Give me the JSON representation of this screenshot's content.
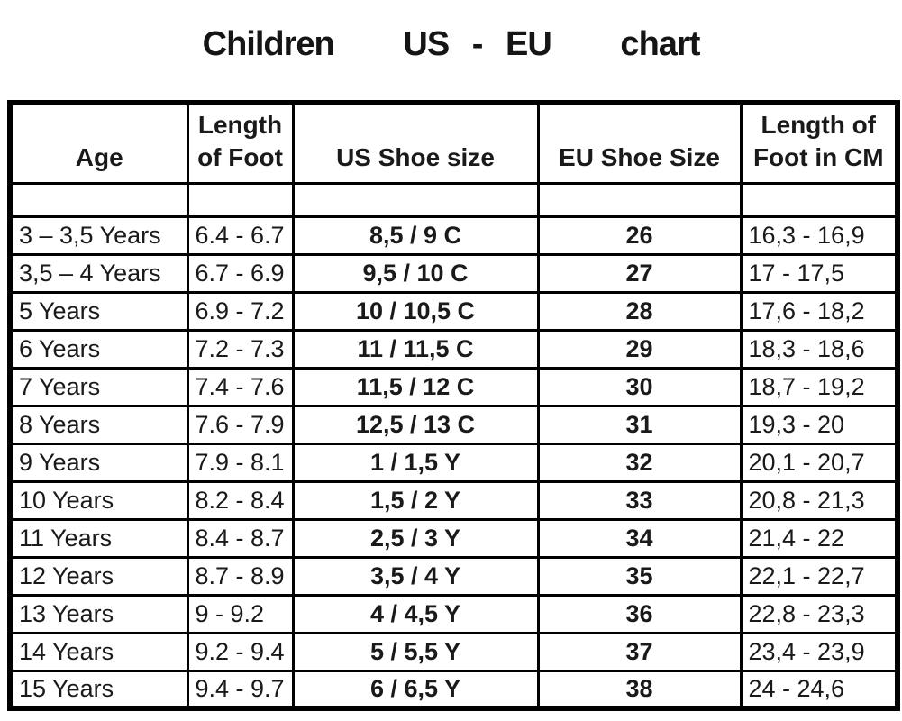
{
  "title": "Children   US - EU   chart",
  "colors": {
    "background": "#ffffff",
    "border": "#000000",
    "text": "#1a1a1a"
  },
  "table": {
    "headers": [
      "Age",
      "Length\nof Foot",
      "US Shoe size",
      "EU Shoe Size",
      "Length of\nFoot in CM"
    ],
    "rows": [
      [
        "3 – 3,5 Years",
        "6.4 - 6.7",
        "8,5 / 9 C",
        "26",
        "16,3 - 16,9"
      ],
      [
        "3,5 – 4 Years",
        "6.7 - 6.9",
        "9,5 / 10 C",
        "27",
        "17 - 17,5"
      ],
      [
        "5 Years",
        "6.9 - 7.2",
        "10 / 10,5 C",
        "28",
        "17,6 - 18,2"
      ],
      [
        "6 Years",
        "7.2 - 7.3",
        "11 / 11,5 C",
        "29",
        "18,3 - 18,6"
      ],
      [
        "7 Years",
        "7.4 - 7.6",
        "11,5 / 12 C",
        "30",
        "18,7 - 19,2"
      ],
      [
        "8 Years",
        "7.6 - 7.9",
        "12,5 / 13 C",
        "31",
        "19,3 - 20"
      ],
      [
        "9 Years",
        "7.9 - 8.1",
        "1 / 1,5 Y",
        "32",
        "20,1 - 20,7"
      ],
      [
        "10 Years",
        "8.2 - 8.4",
        "1,5 / 2 Y",
        "33",
        "20,8 - 21,3"
      ],
      [
        "11 Years",
        "8.4 - 8.7",
        "2,5 / 3 Y",
        "34",
        "21,4 - 22"
      ],
      [
        "12 Years",
        "8.7 - 8.9",
        "3,5 / 4 Y",
        "35",
        "22,1 - 22,7"
      ],
      [
        "13 Years",
        "9 - 9.2",
        "4 / 4,5 Y",
        "36",
        "22,8 - 23,3"
      ],
      [
        "14 Years",
        "9.2 - 9.4",
        "5 / 5,5 Y",
        "37",
        "23,4 - 23,9"
      ],
      [
        "15 Years",
        "9.4 - 9.7",
        "6 / 6,5 Y",
        "38",
        "24 - 24,6"
      ]
    ]
  },
  "chart_data": {
    "type": "table",
    "title": "Children US - EU chart",
    "columns": [
      "Age",
      "Length of Foot",
      "US Shoe size",
      "EU Shoe Size",
      "Length of Foot in CM"
    ],
    "rows": [
      [
        "3 – 3,5 Years",
        "6.4 - 6.7",
        "8,5 / 9 C",
        "26",
        "16,3 - 16,9"
      ],
      [
        "3,5 – 4 Years",
        "6.7 - 6.9",
        "9,5 / 10 C",
        "27",
        "17 - 17,5"
      ],
      [
        "5 Years",
        "6.9 - 7.2",
        "10 / 10,5 C",
        "28",
        "17,6 - 18,2"
      ],
      [
        "6 Years",
        "7.2 - 7.3",
        "11 / 11,5 C",
        "29",
        "18,3 - 18,6"
      ],
      [
        "7 Years",
        "7.4 - 7.6",
        "11,5 / 12 C",
        "30",
        "18,7 - 19,2"
      ],
      [
        "8 Years",
        "7.6 - 7.9",
        "12,5 / 13 C",
        "31",
        "19,3 - 20"
      ],
      [
        "9 Years",
        "7.9 - 8.1",
        "1 / 1,5 Y",
        "32",
        "20,1 - 20,7"
      ],
      [
        "10 Years",
        "8.2 - 8.4",
        "1,5 / 2 Y",
        "33",
        "20,8 - 21,3"
      ],
      [
        "11 Years",
        "8.4 - 8.7",
        "2,5 / 3 Y",
        "34",
        "21,4 - 22"
      ],
      [
        "12 Years",
        "8.7 - 8.9",
        "3,5 / 4 Y",
        "35",
        "22,1 - 22,7"
      ],
      [
        "13 Years",
        "9 - 9.2",
        "4 / 4,5 Y",
        "36",
        "22,8 - 23,3"
      ],
      [
        "14 Years",
        "9.2 - 9.4",
        "5 / 5,5 Y",
        "37",
        "23,4 - 23,9"
      ],
      [
        "15 Years",
        "9.4 - 9.7",
        "6 / 6,5 Y",
        "38",
        "24 - 24,6"
      ]
    ]
  }
}
